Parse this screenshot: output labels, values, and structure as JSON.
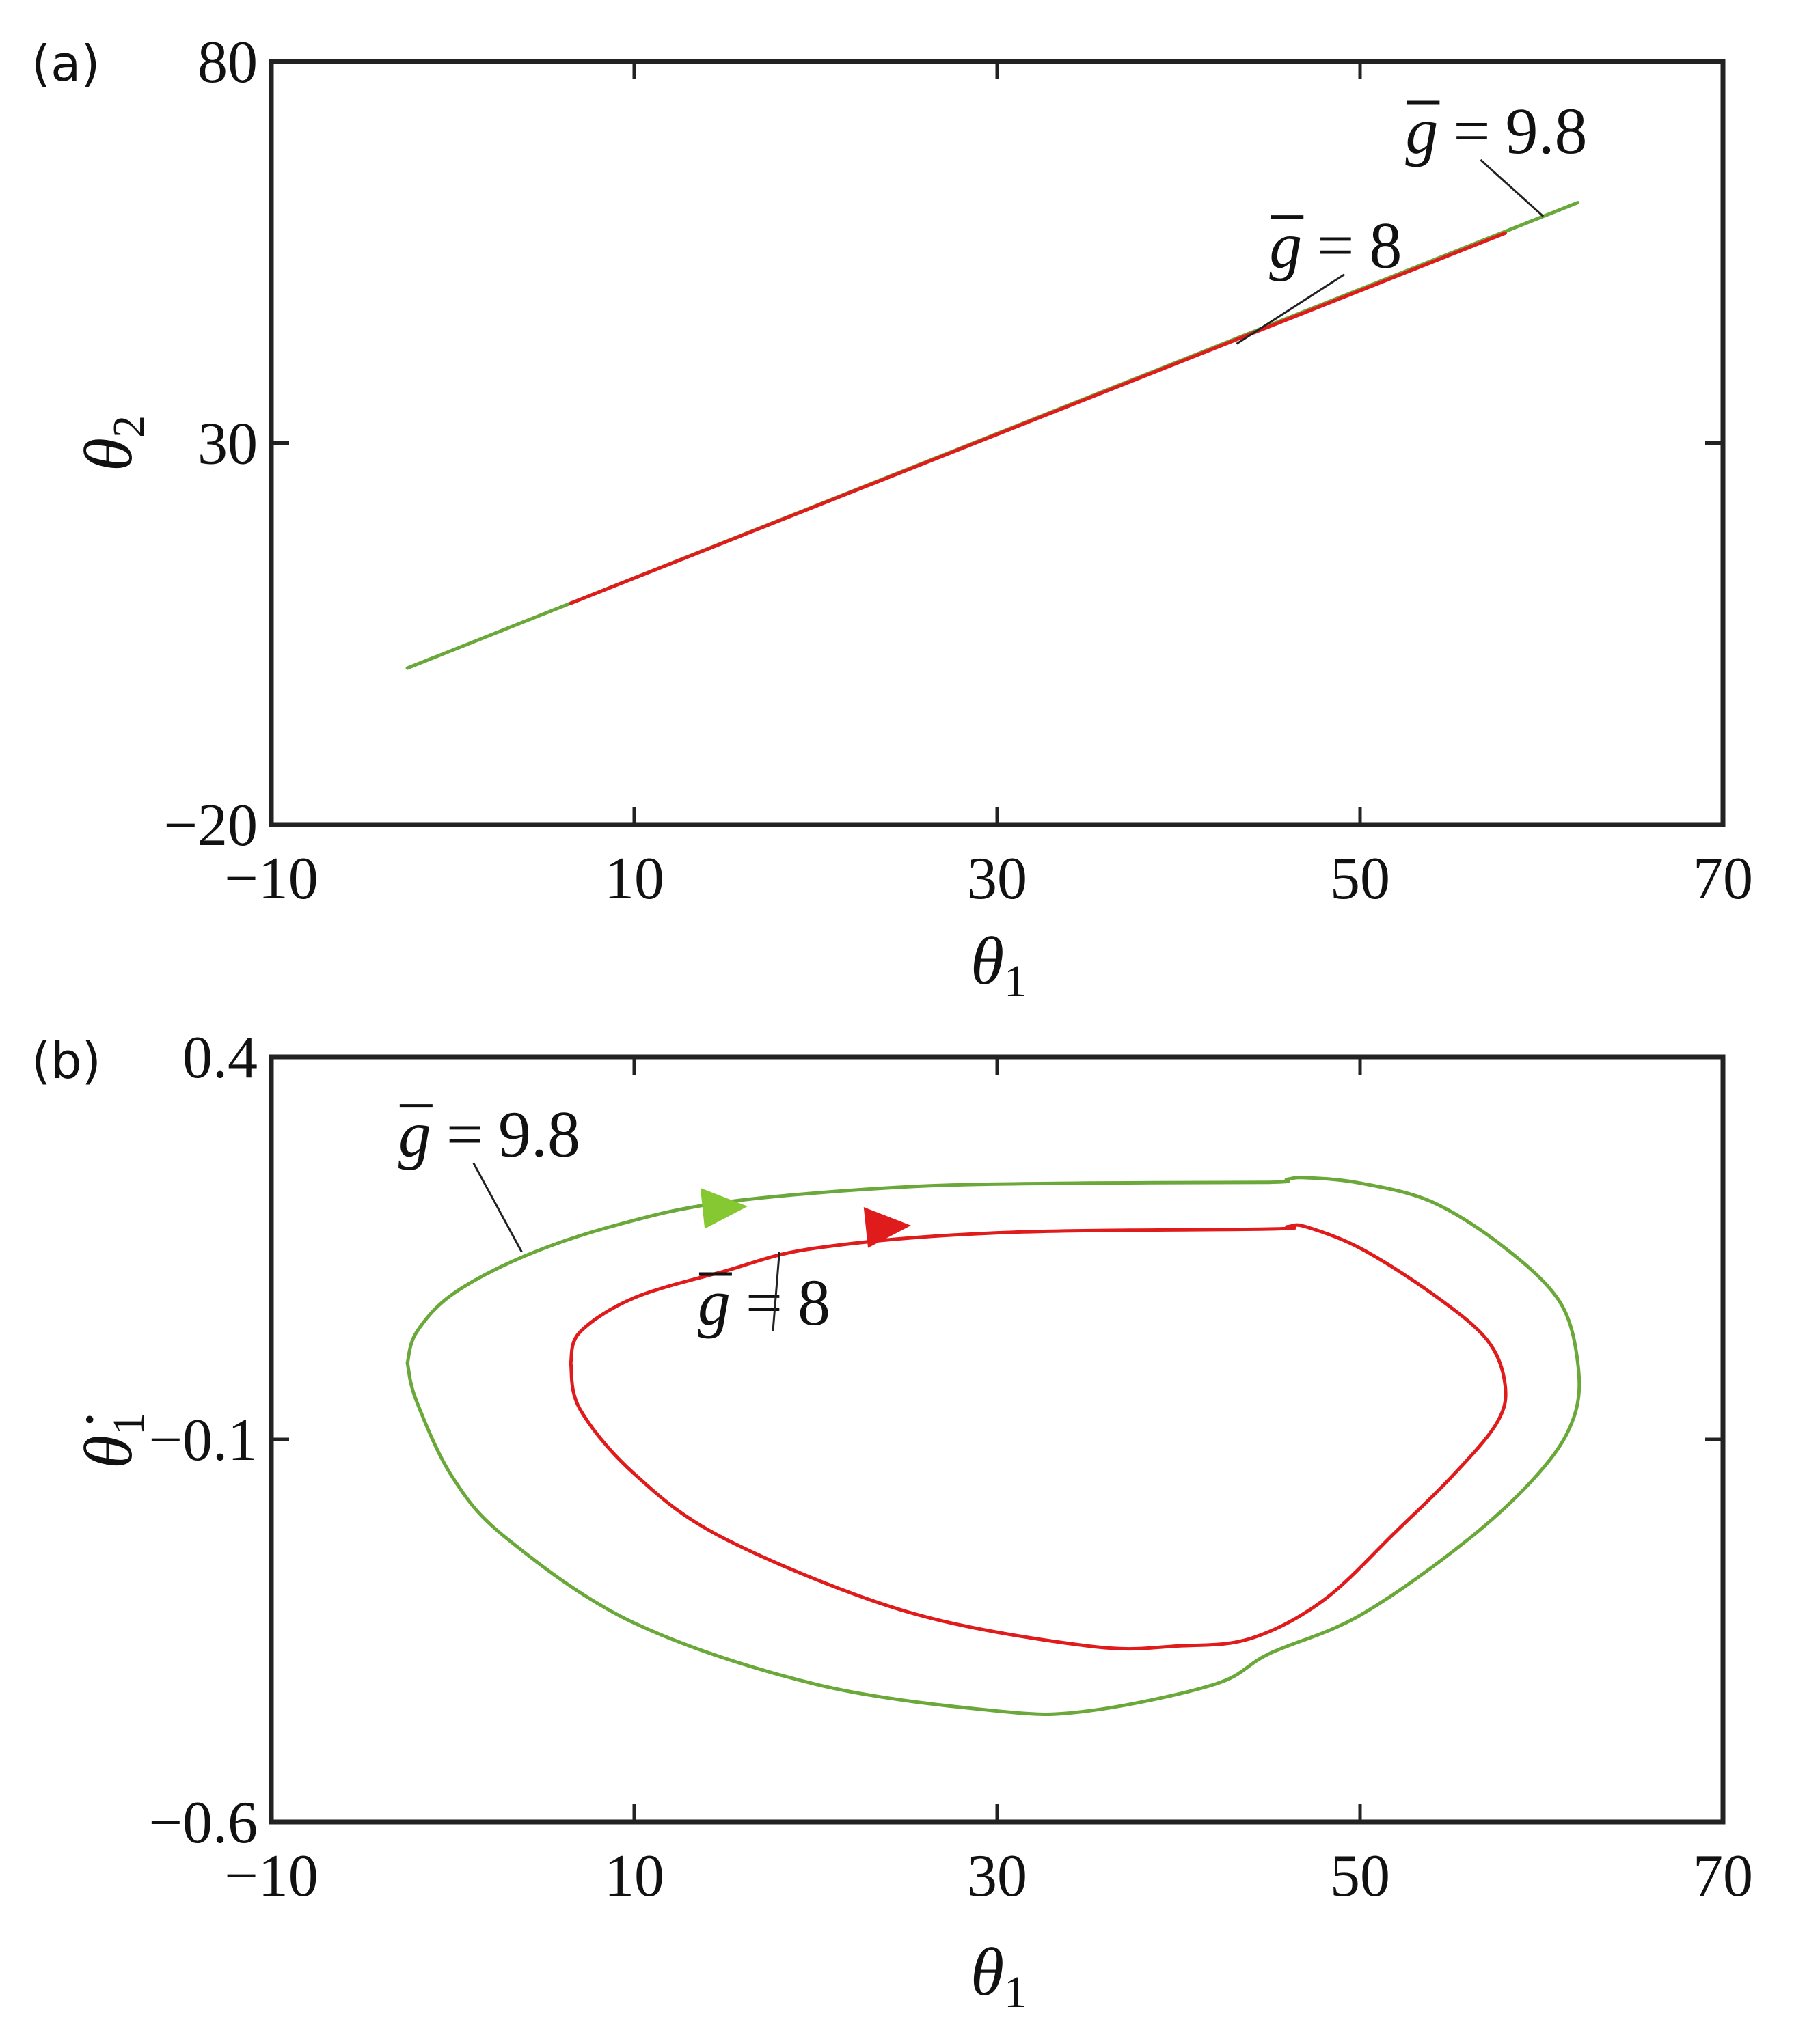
{
  "colors": {
    "green": "#6aa83a",
    "red": "#e01b1b",
    "arrow_green": "#86c832",
    "axis": "#222222"
  },
  "chart_data": [
    {
      "panel": "(a)",
      "type": "line",
      "xlabel": "θ",
      "xlabel_sub": "1",
      "ylabel": "θ",
      "ylabel_sub": "2",
      "xlim": [
        -10,
        70
      ],
      "ylim": [
        -20,
        80
      ],
      "xticks": [
        -10,
        10,
        30,
        50,
        70
      ],
      "yticks": [
        -20,
        30,
        80
      ],
      "xtick_labels": [
        "−10",
        "10",
        "30",
        "50",
        "70"
      ],
      "ytick_labels": [
        "−20",
        "30",
        "80"
      ],
      "grid": false,
      "series": [
        {
          "label": "g = 9.8",
          "g_value": "9.8",
          "color": "#6aa83a",
          "x": [
            -2.5,
            62.0
          ],
          "y": [
            0.5,
            61.5
          ]
        },
        {
          "label": "g = 8",
          "g_value": "8",
          "color": "#e01b1b",
          "x": [
            6.5,
            58.0
          ],
          "y": [
            9.0,
            57.5
          ]
        }
      ],
      "annotations": [
        {
          "g_prefix": "g",
          "eq": "=",
          "value": "9.8",
          "label_at": [
            52.5,
            68.0
          ],
          "points_to": [
            60.1,
            59.7
          ]
        },
        {
          "g_prefix": "g",
          "eq": "=",
          "value": "8",
          "label_at": [
            45.0,
            53.0
          ],
          "points_to": [
            43.2,
            43.0
          ]
        }
      ]
    },
    {
      "panel": "(b)",
      "type": "line",
      "xlabel": "θ",
      "xlabel_sub": "1",
      "ylabel": "θ̇",
      "ylabel_sub": "1",
      "xlim": [
        -10,
        70
      ],
      "ylim": [
        -0.6,
        0.4
      ],
      "xticks": [
        -10,
        10,
        30,
        50,
        70
      ],
      "yticks": [
        -0.6,
        -0.1,
        0.4
      ],
      "xtick_labels": [
        "−10",
        "10",
        "30",
        "50",
        "70"
      ],
      "ytick_labels": [
        "−0.6",
        "−0.1",
        "0.4"
      ],
      "grid": false,
      "series": [
        {
          "label": "g = 9.8",
          "g_value": "9.8",
          "color": "#6aa83a",
          "x": [
            -2.5,
            -2.0,
            0.0,
            4.0,
            9.0,
            15.0,
            25.0,
            35.0,
            45.0,
            46.0,
            47.0,
            50.0,
            54.0,
            58.0,
            61.0,
            62.0,
            61.8,
            60.0,
            56.0,
            50.0,
            45.0,
            42.0,
            35.0,
            30.0,
            20.0,
            10.0,
            3.0,
            0.0,
            -2.0,
            -2.5
          ],
          "y": [
            0.0,
            0.04,
            0.09,
            0.14,
            0.18,
            0.21,
            0.23,
            0.235,
            0.236,
            0.24,
            0.242,
            0.235,
            0.21,
            0.15,
            0.08,
            0.0,
            -0.07,
            -0.14,
            -0.23,
            -0.33,
            -0.38,
            -0.42,
            -0.455,
            -0.455,
            -0.42,
            -0.34,
            -0.23,
            -0.15,
            -0.05,
            0.0
          ]
        },
        {
          "label": "g = 8",
          "g_value": "8",
          "color": "#e01b1b",
          "x": [
            6.5,
            7.0,
            10.0,
            15.0,
            20.0,
            30.0,
            45.0,
            46.0,
            47.0,
            50.0,
            54.0,
            57.0,
            58.0,
            57.5,
            55.0,
            52.0,
            48.0,
            44.0,
            40.0,
            35.0,
            25.0,
            15.0,
            10.0,
            7.0,
            6.5
          ],
          "y": [
            0.0,
            0.04,
            0.085,
            0.12,
            0.15,
            0.17,
            0.175,
            0.178,
            0.178,
            0.15,
            0.09,
            0.03,
            -0.03,
            -0.08,
            -0.15,
            -0.22,
            -0.31,
            -0.36,
            -0.37,
            -0.37,
            -0.325,
            -0.23,
            -0.145,
            -0.06,
            0.0
          ]
        }
      ],
      "direction_arrows": [
        {
          "series": "g = 9.8",
          "at": [
            15.0,
            0.205
          ],
          "color": "#86c832"
        },
        {
          "series": "g = 8",
          "at": [
            24.0,
            0.18
          ],
          "color": "#e01b1b"
        }
      ],
      "annotations": [
        {
          "g_prefix": "g",
          "eq": "=",
          "value": "9.8",
          "label_at": [
            -3.0,
            0.27
          ],
          "points_to": [
            3.8,
            0.145
          ]
        },
        {
          "g_prefix": "g",
          "eq": "=",
          "value": "8",
          "label_at": [
            13.5,
            0.05
          ],
          "points_to": [
            18.0,
            0.145
          ]
        }
      ]
    }
  ]
}
